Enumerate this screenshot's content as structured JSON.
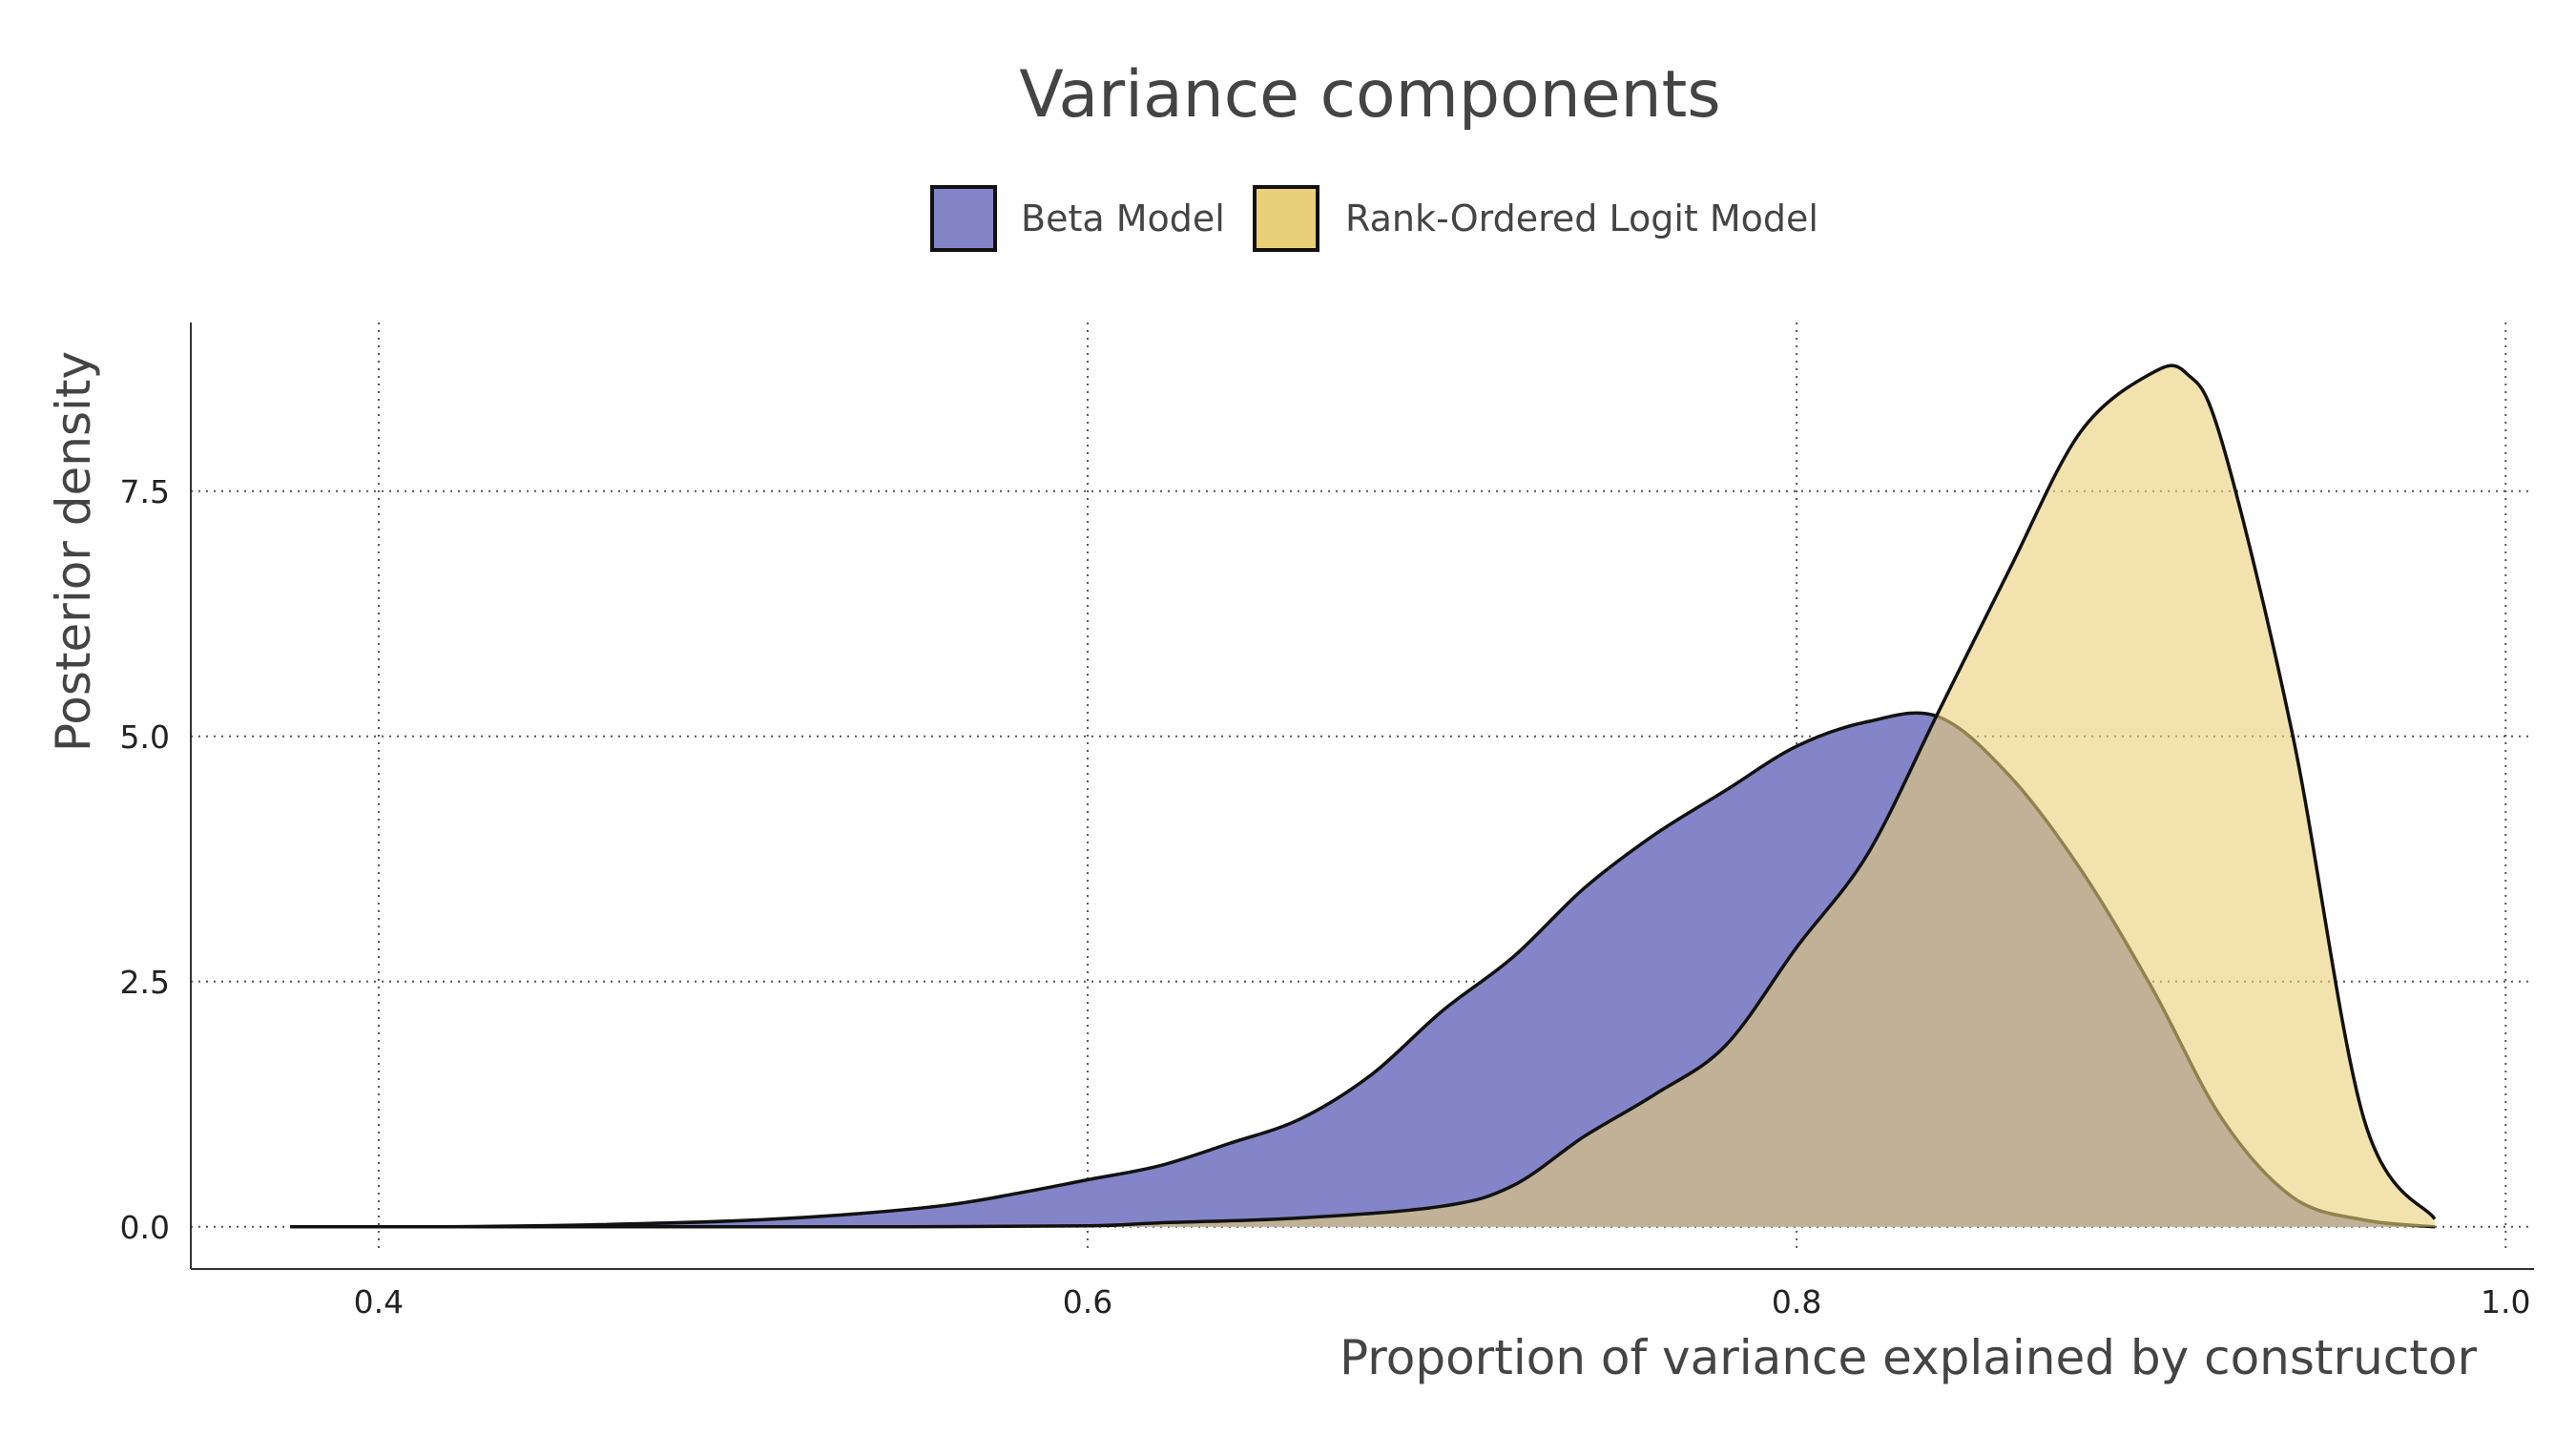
{
  "chart_data": {
    "type": "area",
    "title": "Variance components",
    "xlabel": "Proportion of variance explained by constructor",
    "ylabel": "Posterior density",
    "xlim": [
      0.347,
      1.008
    ],
    "ylim": [
      -0.43,
      9.22
    ],
    "x_ticks": [
      0.4,
      0.6,
      0.8,
      1.0
    ],
    "x_tick_labels": [
      "0.4",
      "0.6",
      "0.8",
      "1.0"
    ],
    "y_ticks": [
      0.0,
      2.5,
      5.0,
      7.5
    ],
    "y_tick_labels": [
      "0.0",
      "2.5",
      "5.0",
      "7.5"
    ],
    "grid": "dotted major gridlines on both axes",
    "legend_position": "top-center",
    "series": [
      {
        "name": "Beta Model",
        "color": "#8385c8",
        "x": [
          0.375,
          0.42,
          0.46,
          0.5,
          0.53,
          0.56,
          0.58,
          0.6,
          0.62,
          0.64,
          0.66,
          0.68,
          0.7,
          0.72,
          0.74,
          0.76,
          0.78,
          0.8,
          0.82,
          0.84,
          0.86,
          0.88,
          0.9,
          0.92,
          0.94,
          0.96,
          0.98
        ],
        "y": [
          0.0,
          0.0,
          0.02,
          0.06,
          0.12,
          0.22,
          0.34,
          0.48,
          0.62,
          0.85,
          1.1,
          1.55,
          2.2,
          2.75,
          3.45,
          4.0,
          4.45,
          4.9,
          5.15,
          5.2,
          4.6,
          3.65,
          2.45,
          1.1,
          0.3,
          0.07,
          0.0
        ]
      },
      {
        "name": "Rank-Ordered Logit Model",
        "color": "#e9cf77",
        "x": [
          0.375,
          0.46,
          0.55,
          0.6,
          0.62,
          0.66,
          0.7,
          0.72,
          0.74,
          0.76,
          0.78,
          0.8,
          0.82,
          0.84,
          0.86,
          0.88,
          0.9,
          0.91,
          0.92,
          0.94,
          0.96,
          0.98
        ],
        "y": [
          0.0,
          0.0,
          0.0,
          0.01,
          0.04,
          0.09,
          0.21,
          0.42,
          0.92,
          1.35,
          1.85,
          2.85,
          3.8,
          5.25,
          6.7,
          8.1,
          8.7,
          8.7,
          8.0,
          5.0,
          1.1,
          0.08
        ]
      }
    ]
  }
}
